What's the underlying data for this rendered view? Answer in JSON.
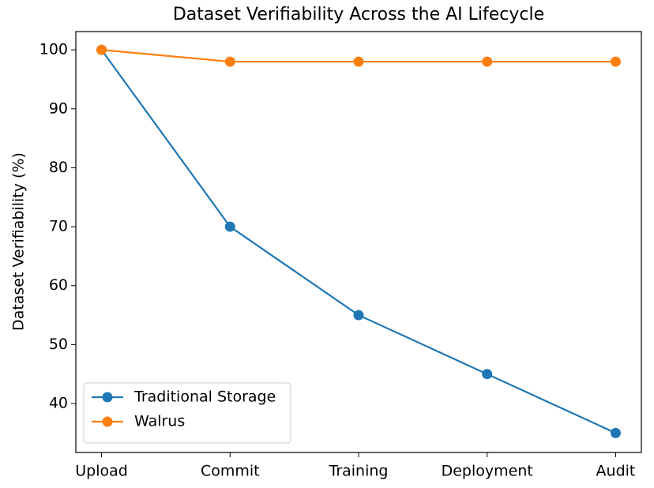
{
  "chart_data": {
    "type": "line",
    "title": "Dataset Verifiability Across the AI Lifecycle",
    "y_label": "Dataset Verifiability (%)",
    "categories": [
      "Upload",
      "Commit",
      "Training",
      "Deployment",
      "Audit"
    ],
    "series": [
      {
        "name": "Traditional Storage",
        "color": "#1f77b4",
        "values": [
          100,
          70,
          55,
          45,
          35
        ]
      },
      {
        "name": "Walrus",
        "color": "#ff7f0e",
        "values": [
          100,
          98,
          98,
          98,
          98
        ]
      }
    ],
    "ylim": [
      31.7,
      103.1
    ],
    "yticks": [
      40,
      50,
      60,
      70,
      80,
      90,
      100
    ],
    "grid": false,
    "legend": "lower left"
  }
}
